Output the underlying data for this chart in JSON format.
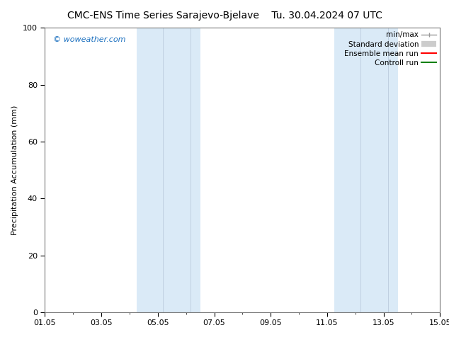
{
  "title_left": "CMC-ENS Time Series Sarajevo-Bjelave",
  "title_right": "Tu. 30.04.2024 07 UTC",
  "ylabel": "Precipitation Accumulation (mm)",
  "ylim": [
    0,
    100
  ],
  "background_color": "#ffffff",
  "plot_bg_color": "#ffffff",
  "watermark": "© woweather.com",
  "watermark_color": "#1a6fbf",
  "x_start_day": 0,
  "x_end_day": 14,
  "x_tick_labels": [
    "01.05",
    "03.05",
    "05.05",
    "07.05",
    "09.05",
    "11.05",
    "13.05",
    "15.05"
  ],
  "x_tick_positions_days": [
    0,
    2,
    4,
    6,
    8,
    10,
    12,
    14
  ],
  "shaded_bands": [
    {
      "x_start_day": 3.25,
      "x_end_day": 5.5,
      "color": "#daeaf7"
    },
    {
      "x_start_day": 10.25,
      "x_end_day": 12.5,
      "color": "#daeaf7"
    }
  ],
  "inner_lines": [
    {
      "x_day": 4.17,
      "color": "#bbccdd"
    },
    {
      "x_day": 5.17,
      "color": "#bbccdd"
    },
    {
      "x_day": 11.17,
      "color": "#bbccdd"
    },
    {
      "x_day": 12.17,
      "color": "#bbccdd"
    }
  ],
  "legend_entries": [
    {
      "label": "min/max",
      "color": "#999999",
      "lw": 1.2,
      "style": "minmax"
    },
    {
      "label": "Standard deviation",
      "color": "#cccccc",
      "lw": 7,
      "style": "band"
    },
    {
      "label": "Ensemble mean run",
      "color": "#ff0000",
      "lw": 1.5,
      "style": "line"
    },
    {
      "label": "Controll run",
      "color": "#008000",
      "lw": 1.5,
      "style": "line"
    }
  ],
  "title_fontsize": 10,
  "tick_fontsize": 8,
  "ylabel_fontsize": 8,
  "legend_fontsize": 7.5,
  "watermark_fontsize": 8
}
